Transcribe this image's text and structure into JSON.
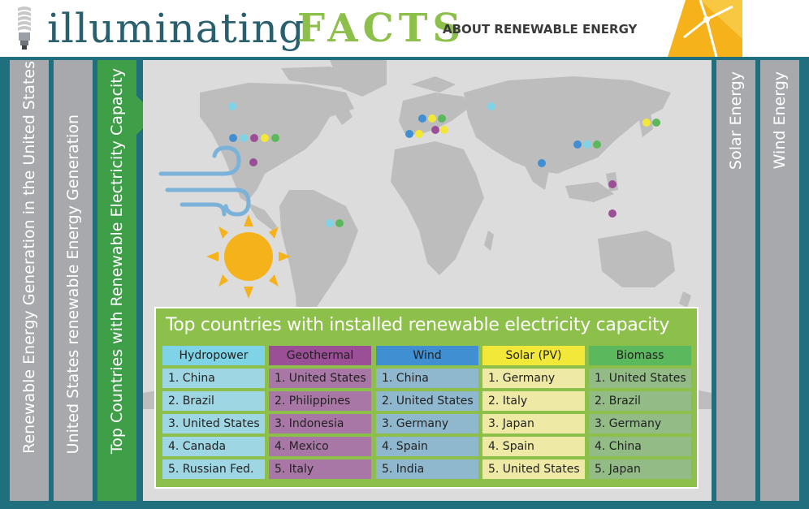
{
  "header": {
    "title_main": "illuminating",
    "title_accent": "FACTS",
    "subtitle": "ABOUT RENEWABLE ENERGY"
  },
  "tabs": [
    {
      "label": "Renewable Energy Generation in the United States",
      "active": false
    },
    {
      "label": "United States renewable Energy Generation",
      "active": false
    },
    {
      "label": "Top Countries with Renewable Electricity Capacity",
      "active": true
    },
    {
      "label": "Solar Energy",
      "active": false
    },
    {
      "label": "Wind Energy",
      "active": false
    }
  ],
  "icons": [
    "bulb-icon",
    "wind-turbine-logo-icon",
    "wind-icon",
    "sun-icon",
    "world-map"
  ],
  "colors": {
    "hydropower": "#7fd3e6",
    "geothermal": "#9b4f96",
    "wind": "#3f8fd2",
    "solar": "#f2e83a",
    "biomass": "#5cb85c",
    "active_tab": "#3f9e48",
    "panel": "#8cc04b"
  },
  "table": {
    "title": "Top countries with installed renewable electricity capacity",
    "columns": [
      {
        "header": "Hydropower",
        "items": [
          "1. China",
          "2. Brazil",
          "3. United States",
          "4. Canada",
          "5. Russian Fed."
        ]
      },
      {
        "header": "Geothermal",
        "items": [
          "1. United States",
          "2. Philippines",
          "3. Indonesia",
          "4. Mexico",
          "5. Italy"
        ]
      },
      {
        "header": "Wind",
        "items": [
          "1. China",
          "2. United States",
          "3. Germany",
          "4. Spain",
          "5. India"
        ]
      },
      {
        "header": "Solar (PV)",
        "items": [
          "1. Germany",
          "2. Italy",
          "3. Japan",
          "4. Spain",
          "5. United States"
        ]
      },
      {
        "header": "Biomass",
        "items": [
          "1. United States",
          "2. Brazil",
          "3. Germany",
          "4. China",
          "5. Japan"
        ]
      }
    ]
  }
}
